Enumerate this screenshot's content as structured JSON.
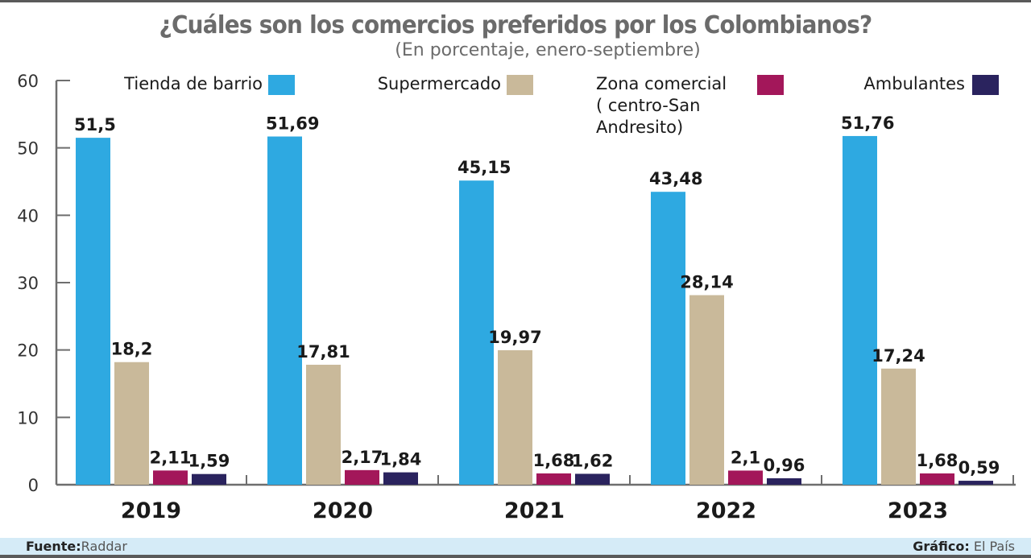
{
  "chart_data": {
    "type": "bar",
    "title": "¿Cuáles son los comercios preferidos por los Colombianos?",
    "subtitle": "(En porcentaje, enero-septiembre)",
    "xlabel": "",
    "ylabel": "",
    "ylim": [
      0,
      60
    ],
    "yticks": [
      "0",
      "10",
      "20",
      "30",
      "40",
      "50",
      "60"
    ],
    "grid": false,
    "legend_position": "top",
    "categories": [
      "2019",
      "2020",
      "2021",
      "2022",
      "2023"
    ],
    "series": [
      {
        "name": "Tienda de barrio",
        "name_lines": [
          "Tienda de barrio"
        ],
        "color": "#2ea9e1",
        "values": [
          51.5,
          51.69,
          45.15,
          43.48,
          51.76
        ],
        "labels": [
          "51,5",
          "51,69",
          "45,15",
          "43,48",
          "51,76"
        ]
      },
      {
        "name": "Supermercado",
        "name_lines": [
          "Supermercado"
        ],
        "color": "#c9b99a",
        "values": [
          18.2,
          17.81,
          19.97,
          28.14,
          17.24
        ],
        "labels": [
          "18,2",
          "17,81",
          "19,97",
          "28,14",
          "17,24"
        ]
      },
      {
        "name": "Zona comercial ( centro-San Andresito)",
        "name_lines": [
          "Zona comercial",
          "( centro-San",
          "Andresito)"
        ],
        "color": "#a3175a",
        "values": [
          2.11,
          2.17,
          1.68,
          2.1,
          1.68
        ],
        "labels": [
          "2,11",
          "2,17",
          "1,68",
          "2,1",
          "1,68"
        ]
      },
      {
        "name": "Ambulantes",
        "name_lines": [
          "Ambulantes"
        ],
        "color": "#2a235e",
        "values": [
          1.59,
          1.84,
          1.62,
          0.96,
          0.59
        ],
        "labels": [
          "1,59",
          "1,84",
          "1,62",
          "0,96",
          "0,59"
        ]
      }
    ]
  },
  "footer": {
    "source_label": "Fuente:",
    "source_value": "Raddar",
    "credit_label": "Gráfico:",
    "credit_value": "El País"
  }
}
